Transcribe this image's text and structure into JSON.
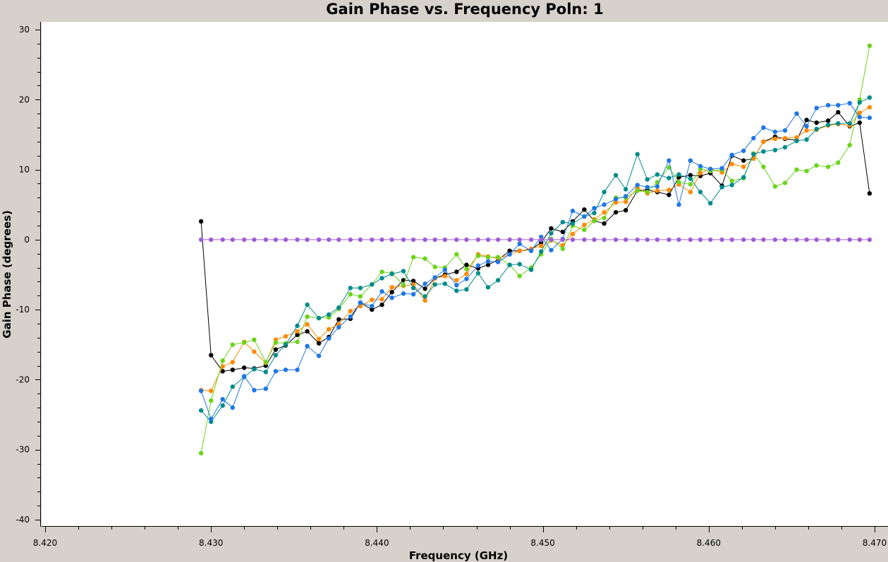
{
  "chart_data": {
    "type": "line",
    "title": "Gain Phase vs. Frequency Poln: 1",
    "xlabel": "Frequency (GHz)",
    "ylabel": "Gain Phase (degrees)",
    "xlim": [
      8.42,
      8.47
    ],
    "ylim": [
      -40,
      30
    ],
    "xticks": [
      "8.420",
      "8.430",
      "8.440",
      "8.450",
      "8.460",
      "8.470"
    ],
    "yticks": [
      "30",
      "20",
      "10",
      "0",
      "-10",
      "-20",
      "-30",
      "-40"
    ],
    "grid": false,
    "x": [
      8.4294,
      8.43,
      8.4307,
      8.4313,
      8.432,
      8.4326,
      8.4333,
      8.4339,
      8.4345,
      8.4352,
      8.4358,
      8.4365,
      8.4371,
      8.4377,
      8.4384,
      8.439,
      8.4397,
      8.4403,
      8.4409,
      8.4416,
      8.4422,
      8.4429,
      8.4435,
      8.4441,
      8.4448,
      8.4454,
      8.4461,
      8.4467,
      8.4473,
      8.448,
      8.4486,
      8.4493,
      8.4499,
      8.4505,
      8.4512,
      8.4518,
      8.4525,
      8.4531,
      8.4537,
      8.4544,
      8.455,
      8.4557,
      8.4563,
      8.4569,
      8.4576,
      8.4582,
      8.4589,
      8.4595,
      8.4601,
      8.4608,
      8.4614,
      8.4621,
      8.4627,
      8.4633,
      8.464,
      8.4646,
      8.4653,
      8.4659,
      8.4665,
      8.4672,
      8.4678,
      8.4685,
      8.4691,
      8.4697
    ],
    "series": [
      {
        "color": "#000000",
        "values": [
          2.6,
          -16.5,
          -18.8,
          -18.6,
          -18.3,
          -18.4,
          -18.0,
          -15.7,
          -15.1,
          -13.6,
          -13.1,
          -14.8,
          -13.9,
          -11.4,
          -11.3,
          -9.0,
          -10.0,
          -9.3,
          -7.5,
          -5.8,
          -5.9,
          -7.0,
          -5.5,
          -5.0,
          -4.6,
          -3.6,
          -4.1,
          -3.6,
          -2.9,
          -1.6,
          -1.6,
          -1.4,
          -0.4,
          1.6,
          1.1,
          2.6,
          4.3,
          2.7,
          2.3,
          3.9,
          4.2,
          7.0,
          7.1,
          6.8,
          6.4,
          8.9,
          9.2,
          9.1,
          9.5,
          7.7,
          12.0,
          11.3,
          11.6,
          14.0,
          14.7,
          14.4,
          14.2,
          17.1,
          16.7,
          17.0,
          18.2,
          16.2,
          16.7,
          6.6
        ]
      },
      {
        "color": "#ff8800",
        "values": [
          -21.5,
          -21.6,
          -18.1,
          -17.5,
          -14.6,
          -16.0,
          -17.6,
          -14.3,
          -13.8,
          -13.1,
          -12.1,
          -14.2,
          -12.8,
          -12.1,
          -10.2,
          -9.5,
          -8.6,
          -8.5,
          -6.8,
          -6.6,
          -6.4,
          -8.7,
          -5.5,
          -5.2,
          -5.8,
          -4.9,
          -2.1,
          -2.4,
          -2.7,
          -2.1,
          -1.6,
          -1.3,
          -0.9,
          -0.1,
          -0.8,
          0.8,
          2.1,
          2.9,
          3.9,
          5.3,
          5.4,
          7.4,
          6.6,
          7.0,
          7.1,
          7.9,
          6.8,
          9.5,
          10.1,
          9.6,
          10.8,
          10.4,
          11.6,
          14.0,
          14.4,
          14.5,
          14.6,
          15.6,
          15.7,
          16.3,
          16.5,
          16.3,
          18.1,
          18.9
        ]
      },
      {
        "color": "#6ad41a",
        "values": [
          -30.5,
          -23.0,
          -17.3,
          -15.0,
          -14.7,
          -14.3,
          -17.5,
          -14.7,
          -14.8,
          -14.6,
          -11.0,
          -11.2,
          -11.1,
          -9.9,
          -7.8,
          -8.1,
          -6.4,
          -4.6,
          -4.8,
          -6.5,
          -2.5,
          -2.7,
          -3.9,
          -4.0,
          -2.1,
          -4.2,
          -2.3,
          -2.5,
          -2.5,
          -3.6,
          -5.2,
          -4.0,
          -2.1,
          0.1,
          -1.3,
          2.0,
          1.4,
          2.7,
          3.1,
          6.0,
          6.0,
          7.0,
          6.8,
          8.2,
          10.3,
          8.2,
          7.9,
          10.1,
          9.8,
          10.0,
          8.4,
          8.8,
          12.3,
          10.4,
          7.6,
          8.1,
          10.0,
          9.8,
          10.6,
          10.4,
          11.0,
          13.5,
          20.0,
          27.7
        ]
      },
      {
        "color": "#008b8b",
        "values": [
          -24.4,
          -26.0,
          -23.7,
          -21.0,
          -19.6,
          -18.5,
          -18.9,
          -16.5,
          -15.0,
          -12.3,
          -9.3,
          -11.2,
          -10.7,
          -9.7,
          -6.9,
          -6.9,
          -6.4,
          -5.5,
          -4.9,
          -4.5,
          -6.9,
          -8.1,
          -6.4,
          -6.3,
          -7.3,
          -7.1,
          -4.8,
          -6.8,
          -5.8,
          -3.6,
          -3.5,
          -4.3,
          -1.7,
          0.9,
          2.5,
          2.3,
          3.3,
          3.8,
          6.8,
          9.2,
          7.2,
          12.2,
          8.6,
          9.3,
          8.8,
          9.3,
          8.7,
          6.8,
          5.2,
          7.5,
          7.8,
          8.9,
          12.2,
          12.6,
          12.8,
          13.2,
          14.1,
          14.3,
          15.8,
          16.4,
          16.6,
          16.6,
          19.6,
          20.3
        ]
      },
      {
        "color": "#1f77e6",
        "values": [
          -21.6,
          -25.6,
          -22.8,
          -24.0,
          -19.5,
          -21.5,
          -21.3,
          -18.8,
          -18.6,
          -18.6,
          -15.2,
          -16.6,
          -14.1,
          -12.5,
          -11.0,
          -9.0,
          -9.5,
          -7.4,
          -8.3,
          -7.7,
          -7.8,
          -6.3,
          -5.4,
          -4.3,
          -6.5,
          -5.6,
          -3.7,
          -3.1,
          -3.2,
          -2.1,
          -0.6,
          -1.6,
          0.4,
          -1.5,
          0.1,
          4.1,
          3.3,
          4.5,
          5.0,
          5.8,
          6.2,
          7.8,
          7.5,
          7.6,
          11.3,
          5.0,
          11.3,
          10.5,
          10.1,
          10.2,
          12.1,
          12.7,
          14.5,
          16.0,
          15.4,
          15.6,
          18.0,
          16.2,
          18.8,
          19.2,
          19.2,
          19.5,
          17.5,
          17.4
        ]
      },
      {
        "color": "#a05ed6",
        "values": [
          0,
          0,
          0,
          0,
          0,
          0,
          0,
          0,
          0,
          0,
          0,
          0,
          0,
          0,
          0,
          0,
          0,
          0,
          0,
          0,
          0,
          0,
          0,
          0,
          0,
          0,
          0,
          0,
          0,
          0,
          0,
          0,
          0,
          0,
          0,
          0,
          0,
          0,
          0,
          0,
          0,
          0,
          0,
          0,
          0,
          0,
          0,
          0,
          0,
          0,
          0,
          0,
          0,
          0,
          0,
          0,
          0,
          0,
          0,
          0,
          0,
          0,
          0,
          0
        ]
      }
    ]
  }
}
